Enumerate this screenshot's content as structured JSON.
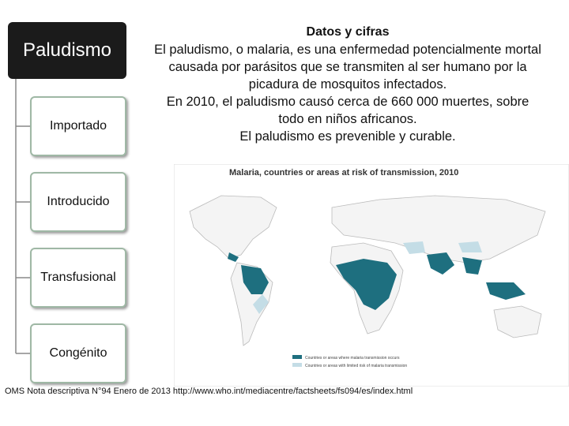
{
  "sidebar": {
    "title": "Paludismo",
    "items": [
      "Importado",
      "Introducido",
      "Transfusional",
      "Congénito"
    ]
  },
  "facts": {
    "title": "Datos y cifras",
    "lines": [
      "El paludismo, o malaria, es una enfermedad potencialmente mortal",
      "causada por parásitos que se transmiten al ser humano por la",
      "picadura de mosquitos infectados.",
      "En 2010, el paludismo causó cerca de 660 000 muertes, sobre",
      "todo en niños africanos.",
      "El paludismo es prevenible y curable."
    ]
  },
  "map": {
    "title": "Malaria, countries or areas at risk of transmission, 2010",
    "legend": [
      "Countries or areas where malaria transmission occurs",
      "Countries or areas with limited risk of malaria transmission"
    ]
  },
  "footer": "OMS Nota descriptiva N°94  Enero de 2013 http://www.who.int/mediacentre/factsheets/fs094/es/index.html"
}
